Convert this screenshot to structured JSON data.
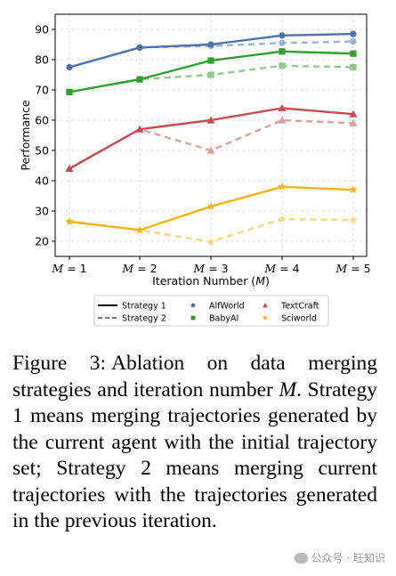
{
  "chart_data": {
    "type": "line",
    "categories": [
      "M = 1",
      "M = 2",
      "M = 3",
      "M = 4",
      "M = 5"
    ],
    "xlabel": "Iteration Number (M)",
    "ylabel": "Performance",
    "ylim": [
      15,
      95
    ],
    "yticks": [
      20,
      30,
      40,
      50,
      60,
      70,
      80,
      90
    ],
    "grid": true,
    "legend_position": "bottom",
    "legend": {
      "strategies": [
        {
          "name": "Strategy 1",
          "style": "solid"
        },
        {
          "name": "Strategy 2",
          "style": "dashed"
        }
      ],
      "tasks": [
        {
          "name": "AlfWorld",
          "color": "#4c72b0",
          "marker": "circle"
        },
        {
          "name": "BabyAI",
          "color": "#2ca02c",
          "marker": "square"
        },
        {
          "name": "TextCraft",
          "color": "#c44e52",
          "marker": "triangle"
        },
        {
          "name": "Sciworld",
          "color": "#f5b414",
          "marker": "star"
        }
      ]
    },
    "series": [
      {
        "name": "AlfWorld",
        "strategy": "Strategy 1",
        "color": "#4c72b0",
        "marker": "circle",
        "values": [
          77.5,
          84,
          85,
          88,
          88.5
        ]
      },
      {
        "name": "AlfWorld",
        "strategy": "Strategy 2",
        "color": "#4c72b0",
        "marker": "circle",
        "values": [
          77.5,
          84,
          84.5,
          85.5,
          86
        ]
      },
      {
        "name": "BabyAI",
        "strategy": "Strategy 1",
        "color": "#2ca02c",
        "marker": "square",
        "values": [
          69.3,
          73.5,
          79.7,
          82.7,
          82
        ]
      },
      {
        "name": "BabyAI",
        "strategy": "Strategy 2",
        "color": "#2ca02c",
        "marker": "square",
        "values": [
          69.3,
          73.5,
          75,
          78,
          77.5
        ]
      },
      {
        "name": "TextCraft",
        "strategy": "Strategy 1",
        "color": "#c44e52",
        "marker": "triangle",
        "values": [
          44,
          57,
          60,
          64,
          62
        ]
      },
      {
        "name": "TextCraft",
        "strategy": "Strategy 2",
        "color": "#c44e52",
        "marker": "triangle",
        "values": [
          44,
          57,
          50,
          60,
          59
        ]
      },
      {
        "name": "Sciworld",
        "strategy": "Strategy 1",
        "color": "#f5b414",
        "marker": "star",
        "values": [
          26.5,
          23.7,
          31.5,
          38,
          37
        ]
      },
      {
        "name": "Sciworld",
        "strategy": "Strategy 2",
        "color": "#f5b414",
        "marker": "star",
        "values": [
          26.5,
          23.7,
          19.8,
          27.3,
          27
        ]
      }
    ]
  },
  "caption": {
    "label": "Figure 3:",
    "text_before": "Ablation on data merging strategies and iteration number ",
    "variable": "M",
    "text_after": ". Strategy 1 means merging trajectories generated by the current agent with the initial trajectory set; Strategy 2 means merging current trajectories with the trajectories generated in the previous iteration."
  },
  "watermark": {
    "text": "公众号 · 旺知识",
    "icon": "wechat-icon"
  }
}
